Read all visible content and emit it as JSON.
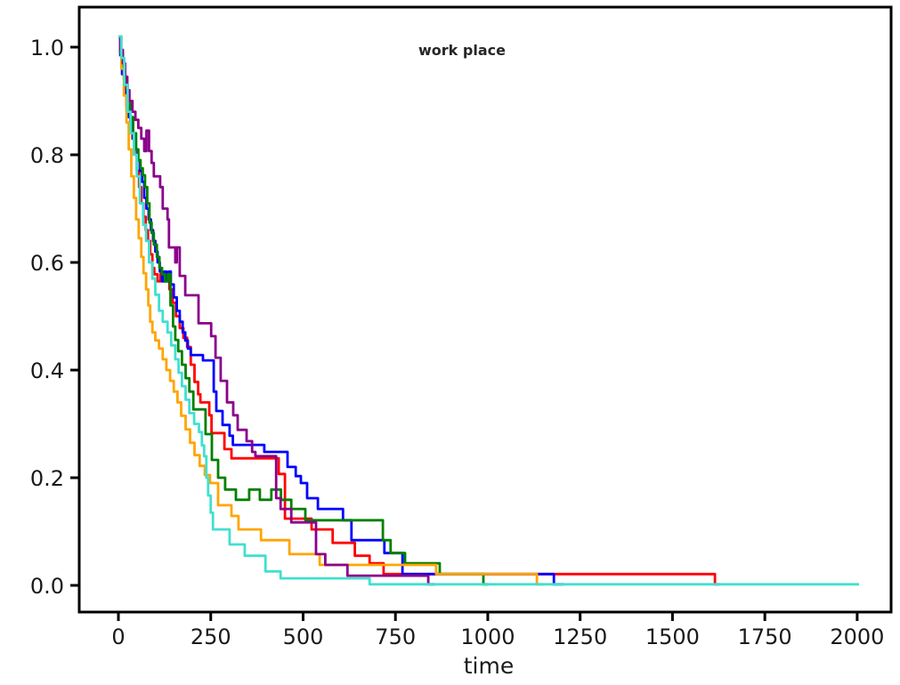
{
  "chart_data": {
    "type": "line",
    "subtype": "step-survival-curves",
    "title": "work place",
    "xlabel": "time",
    "ylabel": "",
    "xlim": [
      -100,
      2100
    ],
    "ylim": [
      -0.04,
      1.06
    ],
    "x_ticks": [
      0,
      250,
      500,
      750,
      1000,
      1250,
      1500,
      1750,
      2000
    ],
    "y_ticks": [
      "0.0",
      "0.2",
      "0.4",
      "0.6",
      "0.8",
      "1.0"
    ],
    "grid": false,
    "legend_position": "none",
    "frame": "full-box",
    "series": [
      {
        "name": "red",
        "color": "#ff0000",
        "points": [
          [
            0,
            1.02
          ],
          [
            5,
            0.99
          ],
          [
            10,
            0.965
          ],
          [
            15,
            0.94
          ],
          [
            20,
            0.915
          ],
          [
            26,
            0.89
          ],
          [
            32,
            0.86
          ],
          [
            38,
            0.83
          ],
          [
            44,
            0.8
          ],
          [
            50,
            0.77
          ],
          [
            56,
            0.74
          ],
          [
            62,
            0.71
          ],
          [
            68,
            0.685
          ],
          [
            74,
            0.66
          ],
          [
            80,
            0.64
          ],
          [
            86,
            0.615
          ],
          [
            92,
            0.59
          ],
          [
            97,
            0.578
          ],
          [
            106,
            0.565
          ],
          [
            114,
            0.578
          ],
          [
            122,
            0.565
          ],
          [
            130,
            0.578
          ],
          [
            138,
            0.55
          ],
          [
            147,
            0.525
          ],
          [
            156,
            0.5
          ],
          [
            166,
            0.478
          ],
          [
            176,
            0.46
          ],
          [
            186,
            0.443
          ],
          [
            196,
            0.41
          ],
          [
            206,
            0.378
          ],
          [
            216,
            0.355
          ],
          [
            222,
            0.34
          ],
          [
            246,
            0.316
          ],
          [
            252,
            0.283
          ],
          [
            287,
            0.253
          ],
          [
            306,
            0.236
          ],
          [
            434,
            0.207
          ],
          [
            451,
            0.124
          ],
          [
            523,
            0.104
          ],
          [
            580,
            0.079
          ],
          [
            640,
            0.055
          ],
          [
            680,
            0.041
          ],
          [
            718,
            0.021
          ],
          [
            1615,
            0.002
          ],
          [
            1628,
            0.002
          ]
        ]
      },
      {
        "name": "blue",
        "color": "#0000ff",
        "points": [
          [
            0,
            1.02
          ],
          [
            5,
            0.985
          ],
          [
            10,
            0.95
          ],
          [
            16,
            0.92
          ],
          [
            22,
            0.89
          ],
          [
            28,
            0.87
          ],
          [
            34,
            0.85
          ],
          [
            40,
            0.83
          ],
          [
            46,
            0.81
          ],
          [
            52,
            0.79
          ],
          [
            58,
            0.77
          ],
          [
            64,
            0.75
          ],
          [
            70,
            0.72
          ],
          [
            76,
            0.7
          ],
          [
            82,
            0.68
          ],
          [
            88,
            0.66
          ],
          [
            94,
            0.64
          ],
          [
            100,
            0.62
          ],
          [
            106,
            0.6
          ],
          [
            112,
            0.583
          ],
          [
            118,
            0.565
          ],
          [
            124,
            0.583
          ],
          [
            130,
            0.565
          ],
          [
            136,
            0.583
          ],
          [
            142,
            0.559
          ],
          [
            150,
            0.535
          ],
          [
            158,
            0.51
          ],
          [
            166,
            0.49
          ],
          [
            174,
            0.47
          ],
          [
            181,
            0.455
          ],
          [
            188,
            0.44
          ],
          [
            196,
            0.428
          ],
          [
            229,
            0.418
          ],
          [
            258,
            0.36
          ],
          [
            265,
            0.324
          ],
          [
            282,
            0.298
          ],
          [
            301,
            0.278
          ],
          [
            310,
            0.261
          ],
          [
            395,
            0.248
          ],
          [
            458,
            0.22
          ],
          [
            480,
            0.203
          ],
          [
            494,
            0.19
          ],
          [
            511,
            0.162
          ],
          [
            540,
            0.142
          ],
          [
            608,
            0.121
          ],
          [
            631,
            0.084
          ],
          [
            720,
            0.06
          ],
          [
            769,
            0.021
          ],
          [
            1179,
            0.002
          ],
          [
            1205,
            0.002
          ]
        ]
      },
      {
        "name": "green",
        "color": "#008000",
        "points": [
          [
            0,
            1.02
          ],
          [
            6,
            0.99
          ],
          [
            12,
            0.96
          ],
          [
            18,
            0.93
          ],
          [
            25,
            0.9
          ],
          [
            32,
            0.87
          ],
          [
            40,
            0.84
          ],
          [
            48,
            0.81
          ],
          [
            54,
            0.79
          ],
          [
            60,
            0.775
          ],
          [
            66,
            0.762
          ],
          [
            72,
            0.74
          ],
          [
            78,
            0.71
          ],
          [
            84,
            0.674
          ],
          [
            90,
            0.655
          ],
          [
            96,
            0.633
          ],
          [
            104,
            0.61
          ],
          [
            111,
            0.59
          ],
          [
            118,
            0.578
          ],
          [
            126,
            0.565
          ],
          [
            134,
            0.578
          ],
          [
            141,
            0.52
          ],
          [
            148,
            0.481
          ],
          [
            154,
            0.456
          ],
          [
            162,
            0.435
          ],
          [
            172,
            0.41
          ],
          [
            182,
            0.385
          ],
          [
            192,
            0.36
          ],
          [
            203,
            0.327
          ],
          [
            236,
            0.281
          ],
          [
            253,
            0.233
          ],
          [
            270,
            0.2
          ],
          [
            289,
            0.178
          ],
          [
            318,
            0.159
          ],
          [
            354,
            0.178
          ],
          [
            383,
            0.159
          ],
          [
            414,
            0.178
          ],
          [
            440,
            0.159
          ],
          [
            468,
            0.142
          ],
          [
            506,
            0.121
          ],
          [
            716,
            0.084
          ],
          [
            737,
            0.06
          ],
          [
            776,
            0.041
          ],
          [
            870,
            0.021
          ],
          [
            988,
            0.002
          ],
          [
            1002,
            0.002
          ]
        ]
      },
      {
        "name": "orange",
        "color": "#ffa500",
        "points": [
          [
            0,
            1.02
          ],
          [
            8,
            0.96
          ],
          [
            15,
            0.91
          ],
          [
            22,
            0.86
          ],
          [
            28,
            0.81
          ],
          [
            35,
            0.76
          ],
          [
            42,
            0.72
          ],
          [
            48,
            0.68
          ],
          [
            55,
            0.645
          ],
          [
            62,
            0.61
          ],
          [
            68,
            0.58
          ],
          [
            75,
            0.55
          ],
          [
            81,
            0.52
          ],
          [
            86,
            0.49
          ],
          [
            92,
            0.47
          ],
          [
            100,
            0.455
          ],
          [
            110,
            0.44
          ],
          [
            120,
            0.42
          ],
          [
            130,
            0.4
          ],
          [
            140,
            0.38
          ],
          [
            150,
            0.36
          ],
          [
            160,
            0.34
          ],
          [
            170,
            0.315
          ],
          [
            182,
            0.29
          ],
          [
            194,
            0.265
          ],
          [
            206,
            0.242
          ],
          [
            220,
            0.222
          ],
          [
            234,
            0.205
          ],
          [
            248,
            0.19
          ],
          [
            270,
            0.149
          ],
          [
            306,
            0.129
          ],
          [
            325,
            0.104
          ],
          [
            386,
            0.084
          ],
          [
            463,
            0.058
          ],
          [
            545,
            0.038
          ],
          [
            860,
            0.021
          ],
          [
            1133,
            0.002
          ],
          [
            1150,
            0.002
          ]
        ]
      },
      {
        "name": "purple",
        "color": "#8b008b",
        "points": [
          [
            0,
            1.02
          ],
          [
            6,
            0.995
          ],
          [
            12,
            0.97
          ],
          [
            18,
            0.945
          ],
          [
            24,
            0.92
          ],
          [
            30,
            0.9
          ],
          [
            38,
            0.88
          ],
          [
            46,
            0.865
          ],
          [
            54,
            0.85
          ],
          [
            62,
            0.83
          ],
          [
            70,
            0.807
          ],
          [
            76,
            0.845
          ],
          [
            83,
            0.807
          ],
          [
            90,
            0.785
          ],
          [
            96,
            0.76
          ],
          [
            113,
            0.74
          ],
          [
            120,
            0.7
          ],
          [
            133,
            0.68
          ],
          [
            137,
            0.628
          ],
          [
            154,
            0.6
          ],
          [
            158,
            0.628
          ],
          [
            166,
            0.575
          ],
          [
            181,
            0.539
          ],
          [
            217,
            0.487
          ],
          [
            251,
            0.463
          ],
          [
            263,
            0.423
          ],
          [
            277,
            0.38
          ],
          [
            294,
            0.34
          ],
          [
            311,
            0.316
          ],
          [
            323,
            0.289
          ],
          [
            347,
            0.268
          ],
          [
            362,
            0.248
          ],
          [
            371,
            0.24
          ],
          [
            427,
            0.162
          ],
          [
            439,
            0.142
          ],
          [
            468,
            0.117
          ],
          [
            535,
            0.058
          ],
          [
            560,
            0.038
          ],
          [
            620,
            0.018
          ],
          [
            839,
            0.002
          ],
          [
            856,
            0.002
          ]
        ]
      },
      {
        "name": "turquoise",
        "color": "#40e0d0",
        "points": [
          [
            0,
            1.02
          ],
          [
            8,
            0.98
          ],
          [
            16,
            0.93
          ],
          [
            25,
            0.88
          ],
          [
            33,
            0.84
          ],
          [
            42,
            0.8
          ],
          [
            50,
            0.76
          ],
          [
            58,
            0.71
          ],
          [
            67,
            0.67
          ],
          [
            75,
            0.64
          ],
          [
            83,
            0.6
          ],
          [
            92,
            0.57
          ],
          [
            100,
            0.54
          ],
          [
            110,
            0.51
          ],
          [
            120,
            0.49
          ],
          [
            133,
            0.47
          ],
          [
            143,
            0.446
          ],
          [
            154,
            0.42
          ],
          [
            163,
            0.395
          ],
          [
            172,
            0.37
          ],
          [
            182,
            0.345
          ],
          [
            192,
            0.32
          ],
          [
            205,
            0.3
          ],
          [
            218,
            0.285
          ],
          [
            226,
            0.26
          ],
          [
            232,
            0.24
          ],
          [
            238,
            0.2
          ],
          [
            243,
            0.167
          ],
          [
            250,
            0.135
          ],
          [
            256,
            0.104
          ],
          [
            301,
            0.076
          ],
          [
            342,
            0.055
          ],
          [
            398,
            0.026
          ],
          [
            439,
            0.013
          ],
          [
            680,
            0.002
          ],
          [
            2005,
            0.002
          ]
        ]
      }
    ]
  }
}
